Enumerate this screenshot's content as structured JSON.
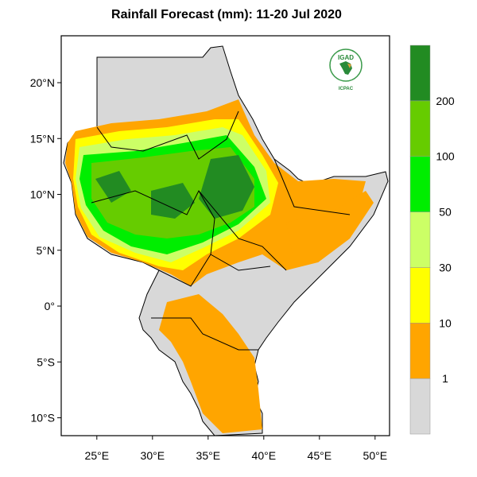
{
  "title": "Rainfall Forecast (mm): 11-20 Jul 2020",
  "map": {
    "lat_ticks": [
      "20°N",
      "15°N",
      "10°N",
      "5°N",
      "0°",
      "5°S",
      "10°S"
    ],
    "lat_values": [
      20,
      15,
      10,
      5,
      0,
      -5,
      -10
    ],
    "lon_ticks": [
      "25°E",
      "30°E",
      "35°E",
      "40°E",
      "45°E",
      "50°E"
    ],
    "lon_values": [
      25,
      30,
      35,
      40,
      45,
      50
    ],
    "lon_range": [
      21.8,
      51.3
    ],
    "lat_range": [
      -11.6,
      24.2
    ],
    "no_rain_color": "#d8d8d8"
  },
  "colorbar": {
    "labels": [
      "1",
      "10",
      "30",
      "50",
      "100",
      "200"
    ],
    "colors": [
      "#d8d8d8",
      "#ffa500",
      "#ffff00",
      "#ccff66",
      "#00ee00",
      "#66cc00",
      "#228b22"
    ]
  },
  "logo": {
    "top": "IGAD",
    "bottom": "ICPAC"
  }
}
